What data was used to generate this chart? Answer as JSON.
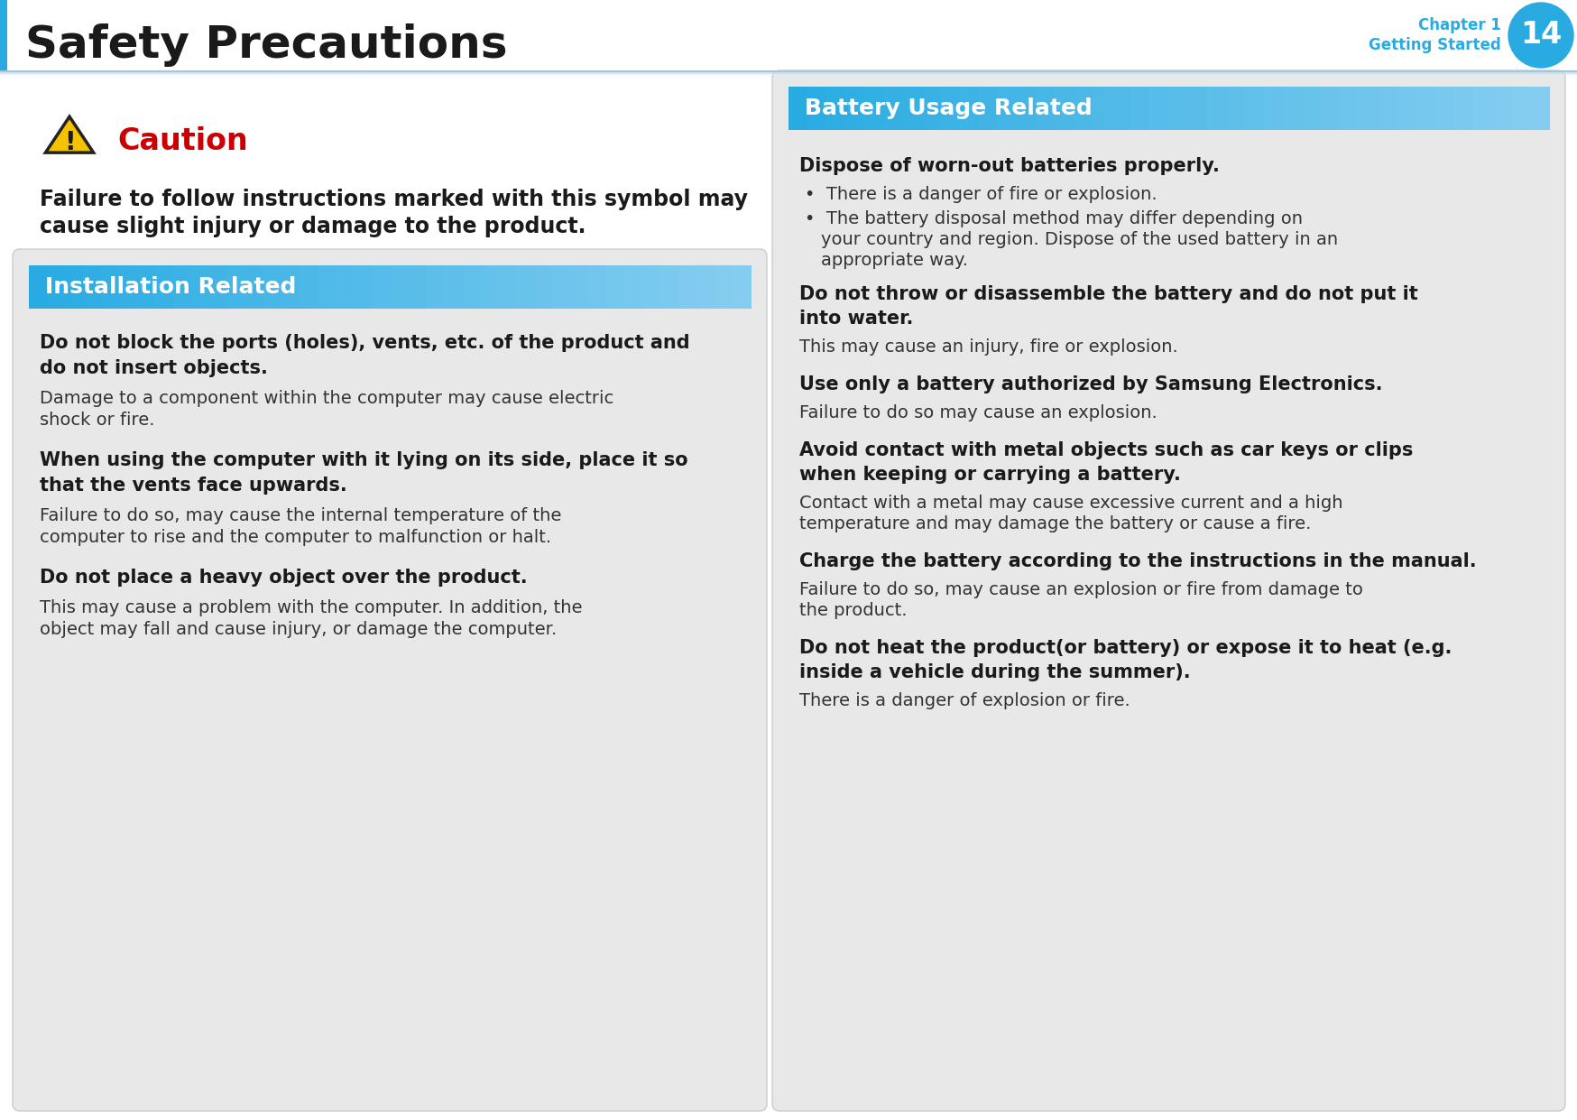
{
  "page_title": "Safety Precautions",
  "page_number": "14",
  "page_bg": "#ffffff",
  "circle_color": "#29abe2",
  "chapter_color": "#29abe2",
  "title_color": "#1a1a1a",
  "caution_color": "#cc0000",
  "section_header_bg_left": "#29abe2",
  "section_header_bg_right": "#29abe2",
  "section_header_text": "#ffffff",
  "left_panel_bg": "#e0e0e0",
  "right_panel_bg": "#e0e0e0",
  "bold_text_color": "#1a1a1a",
  "normal_text_color": "#333333",
  "caution_title": "Caution",
  "caution_body_line1": "Failure to follow instructions marked with this symbol may",
  "caution_body_line2": "cause slight injury or damage to the product.",
  "left_section_title": "Installation Related",
  "left_items": [
    {
      "heading_line1": "Do not block the ports (holes), vents, etc. of the product and",
      "heading_line2": "do not insert objects.",
      "body_line1": "Damage to a component within the computer may cause electric",
      "body_line2": "shock or fire."
    },
    {
      "heading_line1": "When using the computer with it lying on its side, place it so",
      "heading_line2": "that the vents face upwards.",
      "body_line1": "Failure to do so, may cause the internal temperature of the",
      "body_line2": "computer to rise and the computer to malfunction or halt."
    },
    {
      "heading_line1": "Do not place a heavy object over the product.",
      "heading_line2": "",
      "body_line1": "This may cause a problem with the computer. In addition, the",
      "body_line2": "object may fall and cause injury, or damage the computer."
    }
  ],
  "right_section_title": "Battery Usage Related",
  "right_items": [
    {
      "heading_line1": "Dispose of worn-out batteries properly.",
      "heading_line2": "",
      "bullets": [
        "There is a danger of fire or explosion.",
        "The battery disposal method may differ depending on\nyour country and region. Dispose of the used battery in an\nappropriate way."
      ]
    },
    {
      "heading_line1": "Do not throw or disassemble the battery and do not put it",
      "heading_line2": "into water.",
      "body": "This may cause an injury, fire or explosion."
    },
    {
      "heading_line1": "Use only a battery authorized by Samsung Electronics.",
      "heading_line2": "",
      "body": "Failure to do so may cause an explosion."
    },
    {
      "heading_line1": "Avoid contact with metal objects such as car keys or clips",
      "heading_line2": "when keeping or carrying a battery.",
      "body": "Contact with a metal may cause excessive current and a high\ntemperature and may damage the battery or cause a fire."
    },
    {
      "heading_line1": "Charge the battery according to the instructions in the manual.",
      "heading_line2": "",
      "body": "Failure to do so, may cause an explosion or fire from damage to\nthe product."
    },
    {
      "heading_line1": "Do not heat the product(or battery) or expose it to heat (e.g.",
      "heading_line2": "inside a vehicle during the summer).",
      "body": "There is a danger of explosion or fire."
    }
  ]
}
